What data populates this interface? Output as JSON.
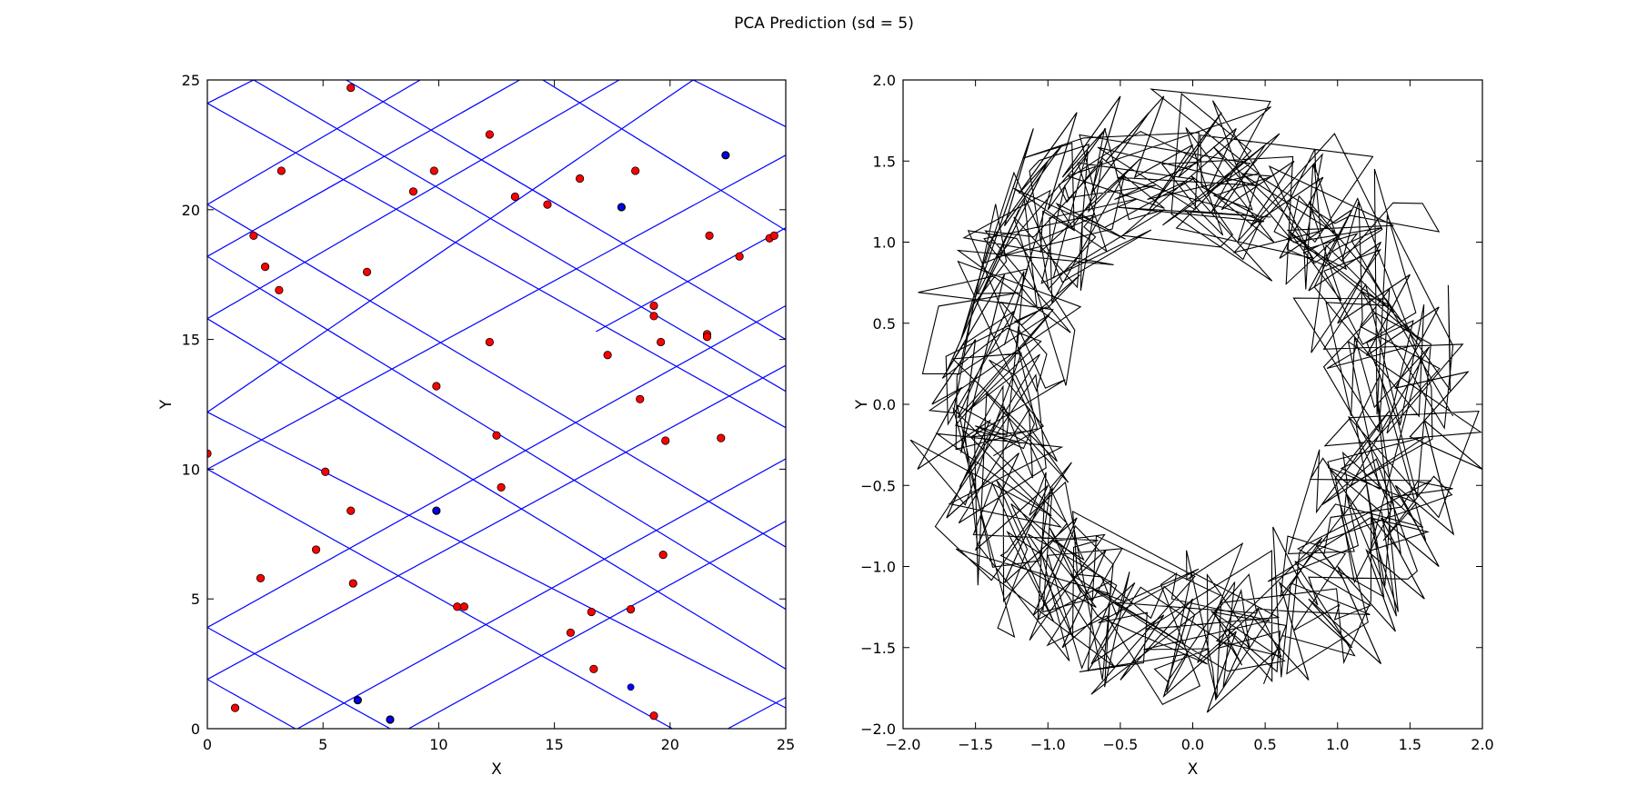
{
  "figure": {
    "title": "PCA Prediction (sd = 5)"
  },
  "chart_data": [
    {
      "type": "scatter",
      "xlabel": "X",
      "ylabel": "Y",
      "xlim": [
        0,
        25
      ],
      "ylim": [
        0,
        25
      ],
      "xticks": [
        "0",
        "5",
        "10",
        "15",
        "20",
        "25"
      ],
      "yticks": [
        "0",
        "5",
        "10",
        "15",
        "20",
        "25"
      ],
      "grid": false,
      "colors": {
        "points": "#ff0000",
        "point_edge": "#000000",
        "lines": "#0000ff",
        "highlight_points": "#0000ff"
      },
      "points": [
        [
          0.0,
          10.6
        ],
        [
          1.2,
          0.8
        ],
        [
          2.0,
          19.0
        ],
        [
          2.3,
          5.8
        ],
        [
          2.5,
          17.8
        ],
        [
          3.1,
          16.9
        ],
        [
          3.2,
          21.5
        ],
        [
          4.7,
          6.9
        ],
        [
          5.1,
          9.9
        ],
        [
          6.2,
          8.4
        ],
        [
          6.3,
          5.6
        ],
        [
          6.2,
          24.7
        ],
        [
          6.5,
          1.1
        ],
        [
          6.9,
          17.6
        ],
        [
          7.9,
          0.35
        ],
        [
          8.9,
          20.7
        ],
        [
          9.8,
          21.5
        ],
        [
          9.9,
          13.2
        ],
        [
          9.9,
          8.4
        ],
        [
          10.8,
          4.7
        ],
        [
          11.1,
          4.7
        ],
        [
          12.2,
          14.9
        ],
        [
          12.2,
          22.9
        ],
        [
          12.5,
          11.3
        ],
        [
          12.7,
          9.3
        ],
        [
          13.3,
          20.5
        ],
        [
          14.7,
          20.2
        ],
        [
          15.7,
          3.7
        ],
        [
          16.1,
          21.2
        ],
        [
          16.6,
          4.5
        ],
        [
          16.7,
          2.3
        ],
        [
          17.3,
          14.4
        ],
        [
          17.9,
          20.1
        ],
        [
          18.3,
          4.6
        ],
        [
          18.5,
          21.5
        ],
        [
          18.7,
          12.7
        ],
        [
          19.3,
          16.3
        ],
        [
          19.3,
          15.9
        ],
        [
          19.6,
          14.9
        ],
        [
          19.8,
          11.1
        ],
        [
          19.7,
          6.7
        ],
        [
          19.3,
          0.5
        ],
        [
          21.6,
          15.2
        ],
        [
          21.6,
          15.1
        ],
        [
          21.7,
          19.0
        ],
        [
          22.2,
          11.2
        ],
        [
          22.4,
          22.1
        ],
        [
          23.0,
          18.2
        ],
        [
          24.3,
          18.9
        ],
        [
          24.5,
          19.0
        ]
      ],
      "highlight_points": [
        [
          18.3,
          1.6
        ],
        [
          22.4,
          22.1
        ],
        [
          17.9,
          20.1
        ],
        [
          9.9,
          8.4
        ],
        [
          7.9,
          0.35
        ],
        [
          6.5,
          1.1
        ]
      ],
      "line_segments": [
        [
          [
            0,
            24.1
          ],
          [
            2.0,
            25.0
          ]
        ],
        [
          [
            0,
            20.2
          ],
          [
            9.2,
            25.0
          ]
        ],
        [
          [
            0,
            18.2
          ],
          [
            13.5,
            25.0
          ]
        ],
        [
          [
            0,
            15.8
          ],
          [
            17.8,
            25.0
          ]
        ],
        [
          [
            0,
            12.2
          ],
          [
            21.0,
            25.0
          ]
        ],
        [
          [
            0,
            10.0
          ],
          [
            25.0,
            22.1
          ]
        ],
        [
          [
            0,
            3.9
          ],
          [
            25.0,
            16.3
          ]
        ],
        [
          [
            0,
            1.9
          ],
          [
            25.0,
            14.0
          ]
        ],
        [
          [
            3.9,
            0
          ],
          [
            25.0,
            10.4
          ]
        ],
        [
          [
            8.7,
            0
          ],
          [
            25.0,
            8.0
          ]
        ],
        [
          [
            16.8,
            15.3
          ],
          [
            25.0,
            19.3
          ]
        ],
        [
          [
            22.5,
            0
          ],
          [
            25.0,
            1.2
          ]
        ],
        [
          [
            2.0,
            25.0
          ],
          [
            25.0,
            13.0
          ]
        ],
        [
          [
            6.0,
            25.0
          ],
          [
            25.0,
            15.0
          ]
        ],
        [
          [
            14.5,
            25.0
          ],
          [
            25.0,
            19.2
          ]
        ],
        [
          [
            21.0,
            25.0
          ],
          [
            25.0,
            23.2
          ]
        ],
        [
          [
            0,
            24.1
          ],
          [
            25.0,
            11.6
          ]
        ],
        [
          [
            0,
            20.2
          ],
          [
            25.0,
            7.0
          ]
        ],
        [
          [
            0,
            18.2
          ],
          [
            25.0,
            4.6
          ]
        ],
        [
          [
            0,
            15.8
          ],
          [
            25.0,
            2.3
          ]
        ],
        [
          [
            0,
            12.2
          ],
          [
            25.0,
            0.8
          ]
        ],
        [
          [
            0,
            10.0
          ],
          [
            20.1,
            0
          ]
        ],
        [
          [
            0,
            3.9
          ],
          [
            7.9,
            0
          ]
        ],
        [
          [
            0,
            1.9
          ],
          [
            3.8,
            0
          ]
        ]
      ]
    },
    {
      "type": "line",
      "xlabel": "X",
      "ylabel": "Y",
      "xlim": [
        -2.0,
        2.0
      ],
      "ylim": [
        -2.0,
        2.0
      ],
      "xticks": [
        "−2.0",
        "−1.5",
        "−1.0",
        "−0.5",
        "0.0",
        "0.5",
        "1.0",
        "1.5",
        "2.0"
      ],
      "yticks": [
        "−2.0",
        "−1.5",
        "−1.0",
        "−0.5",
        "0.0",
        "0.5",
        "1.0",
        "1.5",
        "2.0"
      ],
      "grid": false,
      "colors": {
        "line": "#000000"
      },
      "path_description": "noisy random-walk trajectory around an annulus of radius about 1.5 centered at the origin",
      "x": [
        -1.8,
        -1.5,
        -1.6,
        -1.3,
        -1.7,
        -1.2,
        -1.5,
        -1.0,
        -1.4,
        -1.6,
        -1.1,
        -1.3,
        -0.9,
        -1.2,
        -0.8,
        -1.0,
        -0.6,
        -0.9,
        -0.5,
        -0.7,
        -0.3,
        -0.6,
        -0.2,
        -0.4,
        0.0,
        -0.3,
        0.2,
        -0.1,
        0.3,
        0.1,
        0.5,
        0.2,
        0.7,
        0.4,
        0.9,
        0.6,
        1.1,
        0.8,
        1.3,
        1.0,
        1.5,
        1.2,
        1.7,
        1.4,
        1.9,
        1.5,
        2.0,
        1.6,
        1.8,
        1.4,
        1.7,
        1.3,
        1.6,
        1.2,
        1.4,
        1.0,
        1.3,
        0.8,
        1.1,
        0.6,
        0.8,
        0.4,
        0.6,
        0.1,
        0.3,
        -0.2,
        0.0,
        -0.5,
        -0.2,
        -0.7,
        -0.4,
        -0.9,
        -0.6,
        -1.1,
        -0.8,
        -1.3,
        -1.0,
        -1.5,
        -1.2,
        -1.7,
        -1.4,
        -1.9,
        -1.6,
        -1.8
      ],
      "y": [
        0.0,
        0.4,
        -0.3,
        0.8,
        0.2,
        1.2,
        0.6,
        1.5,
        1.0,
        0.4,
        1.7,
        1.1,
        1.6,
        1.3,
        1.8,
        1.2,
        1.7,
        1.4,
        1.9,
        1.3,
        1.8,
        1.5,
        1.9,
        1.4,
        1.6,
        1.2,
        1.8,
        1.4,
        1.7,
        1.3,
        1.6,
        1.2,
        1.5,
        1.1,
        1.4,
        0.9,
        1.2,
        0.7,
        1.0,
        0.5,
        0.8,
        0.3,
        0.6,
        0.1,
        0.2,
        -0.2,
        -0.4,
        -0.1,
        -0.8,
        -0.5,
        -1.0,
        -0.7,
        -1.2,
        -0.9,
        -1.4,
        -1.0,
        -1.6,
        -1.2,
        -1.5,
        -1.1,
        -1.7,
        -1.3,
        -1.5,
        -1.9,
        -1.4,
        -1.8,
        -1.2,
        -1.7,
        -1.3,
        -1.6,
        -1.1,
        -1.5,
        -0.9,
        -1.3,
        -0.7,
        -1.1,
        -0.5,
        -0.9,
        -0.3,
        -0.7,
        -0.1,
        -0.4,
        0.1,
        0.0
      ]
    }
  ]
}
